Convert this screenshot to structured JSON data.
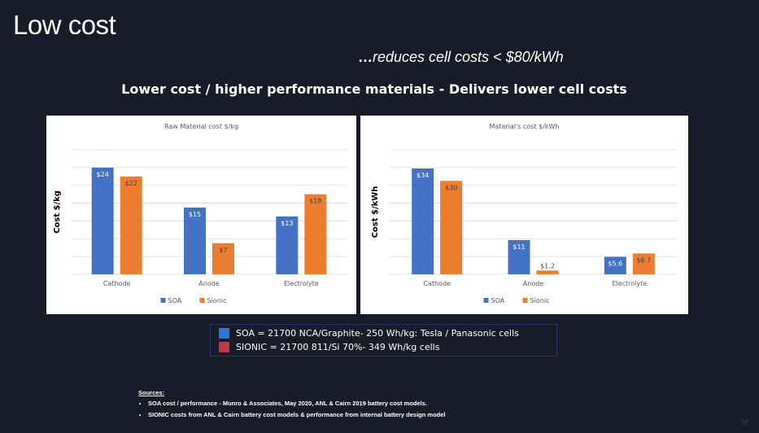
{
  "slide": {
    "title": "Low cost",
    "tagline_dots": "…",
    "tagline_text": "reduces cell costs < $80/kWh",
    "subtitle": "Lower cost / higher performance materials -  Delivers lower cell costs",
    "page_number": "36"
  },
  "colors": {
    "soa": "#4472c4",
    "sionic": "#ed7d31",
    "sionic_swatch": "#c0394b",
    "soa_swatch": "#2e75d6"
  },
  "legend_box": {
    "soa_text": "SOA = 21700 NCA/Graphite- 250 Wh/kg: Tesla / Panasonic cells",
    "sionic_text": "SIONIC = 21700 811/Si 70%- 349 Wh/kg cells"
  },
  "sources": {
    "heading": "Sources:",
    "items": [
      "SOA cost / performance  - Munro & Associates, May 2020, ANL & Cairn 2019 battery cost models.",
      "SIONIC costs from ANL & Cairn battery cost models & performance from internal battery design model"
    ]
  },
  "chart_data": [
    {
      "type": "bar",
      "title": "Raw Material cost $/kg",
      "xlabel": "",
      "ylabel": "Cost $/kg",
      "categories": [
        "Cathode",
        "Anode",
        "Electrolyte"
      ],
      "series": [
        {
          "name": "SOA",
          "values": [
            24,
            15,
            13
          ],
          "labels": [
            "$24",
            "$15",
            "$13"
          ]
        },
        {
          "name": "Sionic",
          "values": [
            22,
            7,
            18
          ],
          "labels": [
            "$22",
            "$7",
            "$18"
          ]
        }
      ],
      "ylim": [
        0,
        28
      ],
      "grid": true,
      "legend": "bottom-center"
    },
    {
      "type": "bar",
      "title": "Material's cost $/kWh",
      "xlabel": "",
      "ylabel": "Cost $/kWh",
      "categories": [
        "Cathode",
        "Anode",
        "Electrolyte"
      ],
      "series": [
        {
          "name": "SOA",
          "values": [
            34,
            11,
            5.6
          ],
          "labels": [
            "$34",
            "$11",
            "$5.6"
          ]
        },
        {
          "name": "Sionic",
          "values": [
            30,
            1.2,
            6.7
          ],
          "labels": [
            "$30",
            "$1.2",
            "$6.7"
          ]
        }
      ],
      "ylim": [
        0,
        40
      ],
      "grid": true,
      "legend": "bottom-center"
    }
  ]
}
